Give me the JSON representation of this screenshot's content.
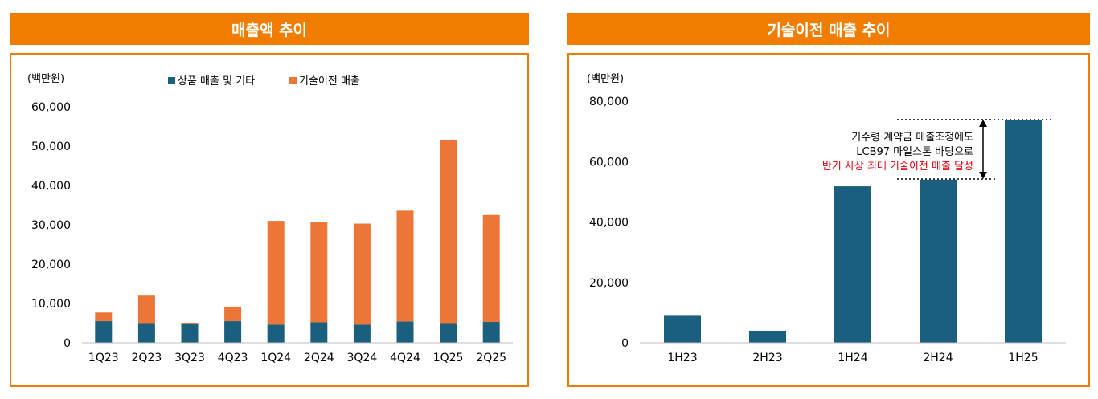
{
  "colors": {
    "accent": "#F07D00",
    "product": "#1A5F7E",
    "tech": "#EB7638",
    "note_red": "#E8000B"
  },
  "left": {
    "title": "매출액 추이",
    "unit": "(백만원)",
    "chart_data": {
      "type": "bar",
      "stacked": true,
      "title": "매출액 추이",
      "ylabel": "(백만원)",
      "ylim": [
        0,
        60000
      ],
      "yticks": [
        0,
        10000,
        20000,
        30000,
        40000,
        50000,
        60000
      ],
      "ytick_labels": [
        "0",
        "10,000",
        "20,000",
        "30,000",
        "40,000",
        "50,000",
        "60,000"
      ],
      "legend_position": "top-center",
      "grid": false,
      "categories": [
        "1Q23",
        "2Q23",
        "3Q23",
        "4Q23",
        "1Q24",
        "2Q24",
        "3Q24",
        "4Q24",
        "1Q25",
        "2Q25"
      ],
      "series": [
        {
          "name": "상품 매출 및 기타",
          "values": [
            5500,
            5000,
            4800,
            5500,
            4600,
            5200,
            4600,
            5400,
            5000,
            5300
          ]
        },
        {
          "name": "기술이전 매출",
          "values": [
            2200,
            7000,
            300,
            3700,
            26400,
            25400,
            25700,
            28200,
            46500,
            27200
          ]
        }
      ]
    }
  },
  "right": {
    "title": "기술이전 매출 추이",
    "unit": "(백만원)",
    "annotation": {
      "line1": "기수령 계약금 매출조정에도",
      "line2": "LCB97 마일스톤 바탕으로",
      "line3": "반기 사상 최대 기술이전 매출 달성"
    },
    "chart_data": {
      "type": "bar",
      "title": "기술이전 매출 추이",
      "ylabel": "(백만원)",
      "ylim": [
        0,
        80000
      ],
      "yticks": [
        0,
        20000,
        40000,
        60000,
        80000
      ],
      "ytick_labels": [
        "0",
        "20,000",
        "40,000",
        "60,000",
        "80,000"
      ],
      "grid": false,
      "categories": [
        "1H23",
        "2H23",
        "1H24",
        "2H24",
        "1H25"
      ],
      "values": [
        9200,
        4000,
        51800,
        54000,
        73700
      ]
    }
  }
}
